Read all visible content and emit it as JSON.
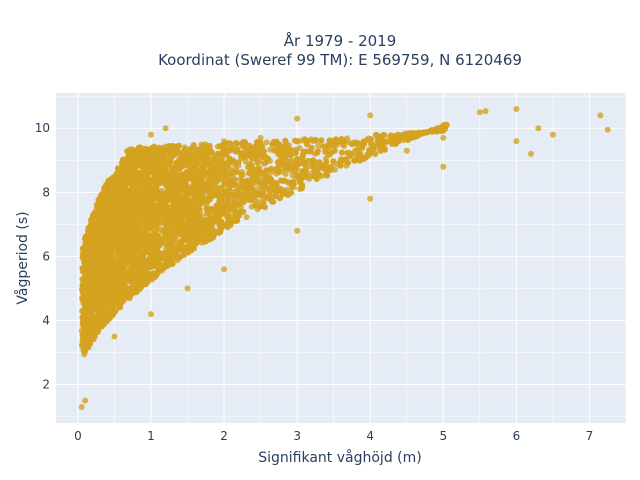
{
  "chart_data": {
    "type": "scatter",
    "title_lines": [
      "År 1979 - 2019",
      "Koordinat (Sweref 99 TM): E 569759, N 6120469"
    ],
    "xlabel": "Signifikant våghöjd (m)",
    "ylabel": "Vågperiod (s)",
    "xlim": [
      -0.3,
      7.5
    ],
    "ylim": [
      0.8,
      11.1
    ],
    "xticks": [
      0,
      1,
      2,
      3,
      4,
      5,
      6,
      7
    ],
    "yticks": [
      2,
      4,
      6,
      8,
      10
    ],
    "grid": true,
    "marker_color": "#d4a21f",
    "plot_background": "#e5ecf6",
    "grid_color": "#ffffff",
    "n_points": 6000,
    "series": [
      {
        "values_sample": [
          [
            0.05,
            1.3
          ],
          [
            0.1,
            1.5
          ],
          [
            0.1,
            3.8
          ],
          [
            0.2,
            5.5
          ],
          [
            0.3,
            7.0
          ],
          [
            0.5,
            7.8
          ],
          [
            0.8,
            8.8
          ],
          [
            1.0,
            9.8
          ],
          [
            1.2,
            10.0
          ],
          [
            1.5,
            9.2
          ],
          [
            2.0,
            9.6
          ],
          [
            2.5,
            9.7
          ],
          [
            3.0,
            10.3
          ],
          [
            3.5,
            9.5
          ],
          [
            4.0,
            10.4
          ],
          [
            4.5,
            9.3
          ],
          [
            5.0,
            9.7
          ],
          [
            5.5,
            10.5
          ],
          [
            6.0,
            10.6
          ],
          [
            6.3,
            10.0
          ],
          [
            6.5,
            9.8
          ],
          [
            7.15,
            10.4
          ],
          [
            7.25,
            9.95
          ],
          [
            0.5,
            3.5
          ],
          [
            1.0,
            4.2
          ],
          [
            1.5,
            5.0
          ],
          [
            2.0,
            5.6
          ],
          [
            3.0,
            6.8
          ],
          [
            4.0,
            7.8
          ],
          [
            5.0,
            8.8
          ],
          [
            6.0,
            9.6
          ],
          [
            6.2,
            9.2
          ]
        ]
      }
    ]
  }
}
